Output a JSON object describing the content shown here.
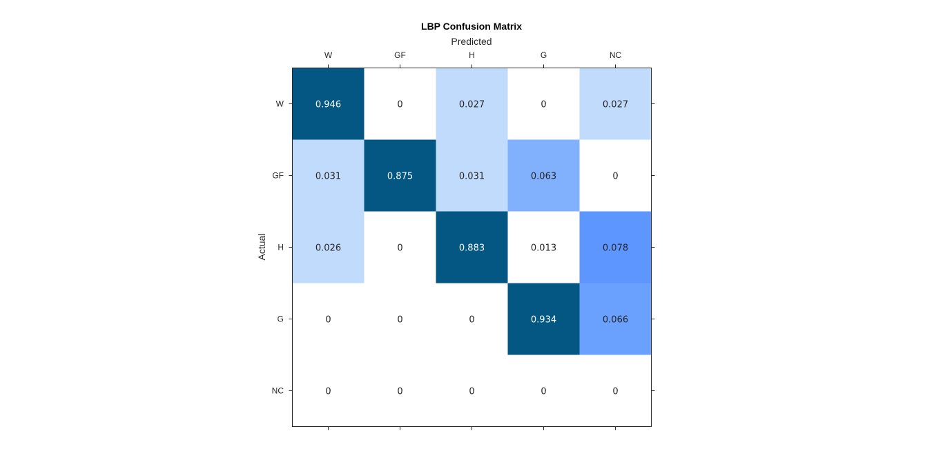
{
  "chart_data": {
    "type": "heatmap",
    "title": "LBP Confusion Matrix",
    "xlabel": "Predicted",
    "ylabel": "Actual",
    "x_categories": [
      "W",
      "GF",
      "H",
      "G",
      "NC"
    ],
    "y_categories": [
      "W",
      "GF",
      "H",
      "G",
      "NC"
    ],
    "values": [
      [
        "0.946",
        "0",
        "0.027",
        "0",
        "0.027"
      ],
      [
        "0.031",
        "0.875",
        "0.031",
        "0.063",
        "0"
      ],
      [
        "0.026",
        "0",
        "0.883",
        "0.013",
        "0.078"
      ],
      [
        "0",
        "0",
        "0",
        "0.934",
        "0.066"
      ],
      [
        "0",
        "0",
        "0",
        "0",
        "0"
      ]
    ],
    "cell_colors": [
      [
        "#035782",
        "#ffffff",
        "#c1dbfc",
        "#ffffff",
        "#c1dbfc"
      ],
      [
        "#c1dbfc",
        "#035782",
        "#c1dbfc",
        "#81b1fd",
        "#ffffff"
      ],
      [
        "#c1dbfc",
        "#ffffff",
        "#035782",
        "#ffffff",
        "#5c96fe"
      ],
      [
        "#ffffff",
        "#ffffff",
        "#ffffff",
        "#035782",
        "#6aa0fe"
      ],
      [
        "#ffffff",
        "#ffffff",
        "#ffffff",
        "#ffffff",
        "#ffffff"
      ]
    ],
    "dark_color": "#035782",
    "x_axis_position": "top",
    "grid": false
  }
}
